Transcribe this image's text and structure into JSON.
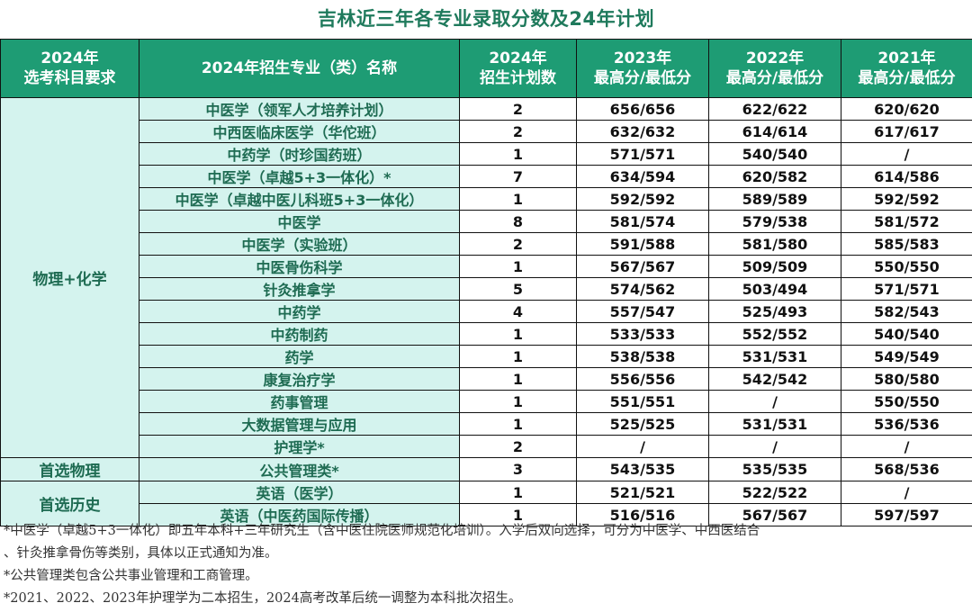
{
  "title": "吉林近三年各专业录取分数及24年计划",
  "headers": {
    "group": [
      "2024年",
      "选考科目要求"
    ],
    "major": "2024年招生专业（类）名称",
    "plan": [
      "2024年",
      "招生计划数"
    ],
    "y2023": [
      "2023年",
      "最高分/最低分"
    ],
    "y2022": [
      "2022年",
      "最高分/最低分"
    ],
    "y2021": [
      "2021年",
      "最高分/最低分"
    ]
  },
  "groups": [
    {
      "label": "物理+化学",
      "rows": [
        {
          "major": "中医学（领军人才培养计划）",
          "plan": "2",
          "s2023": "656/656",
          "s2022": "622/622",
          "s2021": "620/620"
        },
        {
          "major": "中西医临床医学（华佗班）",
          "plan": "2",
          "s2023": "632/632",
          "s2022": "614/614",
          "s2021": "617/617"
        },
        {
          "major": "中药学（时珍国药班）",
          "plan": "1",
          "s2023": "571/571",
          "s2022": "540/540",
          "s2021": "/"
        },
        {
          "major": "中医学（卓越5+3一体化）*",
          "plan": "7",
          "s2023": "634/594",
          "s2022": "620/582",
          "s2021": "614/586"
        },
        {
          "major": "中医学（卓越中医儿科班5+3一体化）",
          "plan": "1",
          "s2023": "592/592",
          "s2022": "589/589",
          "s2021": "592/592"
        },
        {
          "major": "中医学",
          "plan": "8",
          "s2023": "581/574",
          "s2022": "579/538",
          "s2021": "581/572"
        },
        {
          "major": "中医学（实验班）",
          "plan": "2",
          "s2023": "591/588",
          "s2022": "581/580",
          "s2021": "585/583"
        },
        {
          "major": "中医骨伤科学",
          "plan": "1",
          "s2023": "567/567",
          "s2022": "509/509",
          "s2021": "550/550"
        },
        {
          "major": "针灸推拿学",
          "plan": "5",
          "s2023": "574/562",
          "s2022": "503/494",
          "s2021": "571/571"
        },
        {
          "major": "中药学",
          "plan": "4",
          "s2023": "557/547",
          "s2022": "525/493",
          "s2021": "582/543"
        },
        {
          "major": "中药制药",
          "plan": "1",
          "s2023": "533/533",
          "s2022": "552/552",
          "s2021": "540/540"
        },
        {
          "major": "药学",
          "plan": "1",
          "s2023": "538/538",
          "s2022": "531/531",
          "s2021": "549/549"
        },
        {
          "major": "康复治疗学",
          "plan": "1",
          "s2023": "556/556",
          "s2022": "542/542",
          "s2021": "580/580"
        },
        {
          "major": "药事管理",
          "plan": "1",
          "s2023": "551/551",
          "s2022": "/",
          "s2021": "550/550"
        },
        {
          "major": "大数据管理与应用",
          "plan": "1",
          "s2023": "525/525",
          "s2022": "531/531",
          "s2021": "536/536"
        },
        {
          "major": "护理学*",
          "plan": "2",
          "s2023": "/",
          "s2022": "/",
          "s2021": "/"
        }
      ]
    },
    {
      "label": "首选物理",
      "rows": [
        {
          "major": "公共管理类*",
          "plan": "3",
          "s2023": "543/535",
          "s2022": "535/535",
          "s2021": "568/536"
        }
      ]
    },
    {
      "label": "首选历史",
      "rows": [
        {
          "major": "英语（医学）",
          "plan": "1",
          "s2023": "521/521",
          "s2022": "522/522",
          "s2021": "/"
        },
        {
          "major": "英语（中医药国际传播）",
          "plan": "1",
          "s2023": "516/516",
          "s2022": "567/567",
          "s2021": "597/597"
        }
      ]
    }
  ],
  "notes": [
    "*中医学（卓越5+3一体化）即五年本科+三年研究生（含中医住院医师规范化培训）。入学后双向选择，可分为中医学、中西医结合",
    "、针灸推拿骨伤等类别，具体以正式通知为准。",
    "*公共管理类包含公共事业管理和工商管理。",
    "*2021、2022、2023年护理学为二本招生，2024高考改革后统一调整为本科批次招生。"
  ]
}
